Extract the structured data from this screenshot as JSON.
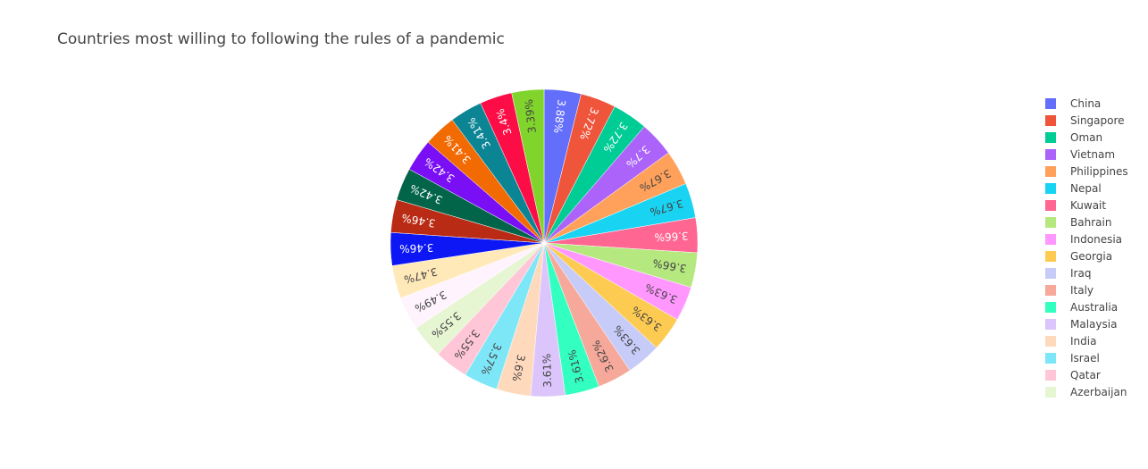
{
  "chart_data": {
    "type": "pie",
    "title": "Countries most willing to following the rules of a pandemic",
    "direction": "clockwise",
    "sort": "descending",
    "legend_position": "right",
    "slices": [
      {
        "label": "China",
        "percent": 3.88,
        "text": "3.88%",
        "color": "#636efa"
      },
      {
        "label": "Singapore",
        "percent": 3.72,
        "text": "3.72%",
        "color": "#EF553B"
      },
      {
        "label": "Oman",
        "percent": 3.72,
        "text": "3.72%",
        "color": "#00cc96"
      },
      {
        "label": "Vietnam",
        "percent": 3.7,
        "text": "3.7%",
        "color": "#ab63fa"
      },
      {
        "label": "Philippines",
        "percent": 3.67,
        "text": "3.67%",
        "color": "#FFA15A"
      },
      {
        "label": "Nepal",
        "percent": 3.67,
        "text": "3.67%",
        "color": "#19d3f3"
      },
      {
        "label": "Kuwait",
        "percent": 3.66,
        "text": "3.66%",
        "color": "#FF6692"
      },
      {
        "label": "Bahrain",
        "percent": 3.66,
        "text": "3.66%",
        "color": "#B6E880"
      },
      {
        "label": "Indonesia",
        "percent": 3.63,
        "text": "3.63%",
        "color": "#FF97FF"
      },
      {
        "label": "Georgia",
        "percent": 3.63,
        "text": "3.63%",
        "color": "#FECB52"
      },
      {
        "label": "Iraq",
        "percent": 3.63,
        "text": "3.63%",
        "color": "#c6cbf7"
      },
      {
        "label": "Italy",
        "percent": 3.62,
        "text": "3.62%",
        "color": "#f6a99b"
      },
      {
        "label": "Australia",
        "percent": 3.61,
        "text": "3.61%",
        "color": "#33ffc0"
      },
      {
        "label": "Malaysia",
        "percent": 3.61,
        "text": "3.61%",
        "color": "#dcc5fb"
      },
      {
        "label": "India",
        "percent": 3.6,
        "text": "3.6%",
        "color": "#ffd9bc"
      },
      {
        "label": "Israel",
        "percent": 3.57,
        "text": "3.57%",
        "color": "#7de6f7"
      },
      {
        "label": "Qatar",
        "percent": 3.55,
        "text": "3.55%",
        "color": "#ffc6d7"
      },
      {
        "label": "Azerbaijan",
        "percent": 3.55,
        "text": "3.55%",
        "color": "#e6f5d2"
      },
      {
        "label": "",
        "percent": 3.49,
        "text": "3.49%",
        "color": "#fff4fd"
      },
      {
        "label": "",
        "percent": 3.47,
        "text": "3.47%",
        "color": "#ffe9b8"
      },
      {
        "label": "",
        "percent": 3.46,
        "text": "3.46%",
        "color": "#0d17f5"
      },
      {
        "label": "",
        "percent": 3.46,
        "text": "3.46%",
        "color": "#b92b15"
      },
      {
        "label": "",
        "percent": 3.42,
        "text": "3.42%",
        "color": "#02654a"
      },
      {
        "label": "",
        "percent": 3.42,
        "text": "3.42%",
        "color": "#7a0ef5"
      },
      {
        "label": "",
        "percent": 3.41,
        "text": "3.41%",
        "color": "#f26a02"
      },
      {
        "label": "",
        "percent": 3.41,
        "text": "3.41%",
        "color": "#0b8494"
      },
      {
        "label": "",
        "percent": 3.4,
        "text": "3.4%",
        "color": "#fd0d46"
      },
      {
        "label": "",
        "percent": 3.39,
        "text": "3.39%",
        "color": "#80d42b"
      }
    ]
  }
}
